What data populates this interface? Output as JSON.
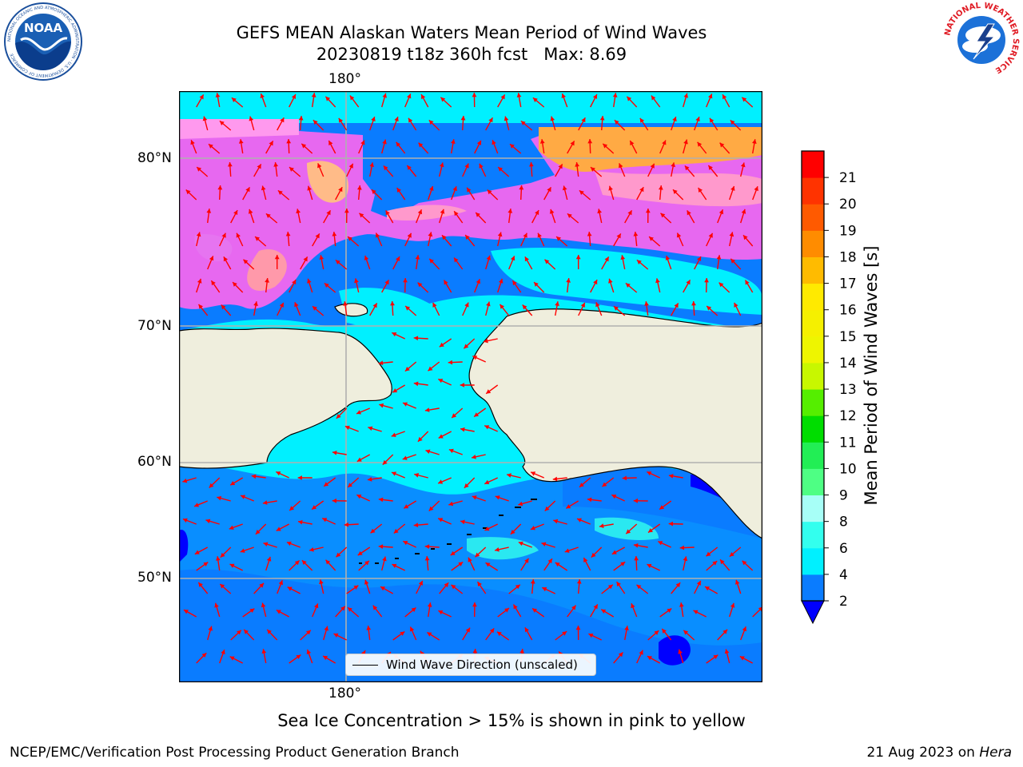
{
  "title": {
    "line1": "GEFS MEAN Alaskan Waters Mean Period of Wind Waves",
    "line2": "20230819 t18z 360h fcst   Max: 8.69"
  },
  "map": {
    "top_lon_label": "180°",
    "bottom_lon_label": "180°",
    "lat_labels": [
      "80°N",
      "70°N",
      "60°N",
      "50°N"
    ],
    "legend_label": "Wind Wave Direction (unscaled)",
    "land_color": "#efeedd",
    "coast_color": "#000000",
    "arrow_color": "#ff0000",
    "grid_color": "#b0b0b0"
  },
  "colorbar": {
    "label": "Mean Period of Wind Waves [s]",
    "ticks": [
      "2",
      "4",
      "6",
      "8",
      "9",
      "10",
      "11",
      "12",
      "13",
      "14",
      "15",
      "16",
      "17",
      "18",
      "19",
      "20",
      "21"
    ],
    "colors": [
      "#0a7cff",
      "#00f0ff",
      "#33ffee",
      "#a7fff7",
      "#4eff84",
      "#22ee55",
      "#00dd00",
      "#55ee00",
      "#c8f700",
      "#eef500",
      "#f5f000",
      "#ffea00",
      "#ffbb00",
      "#ff8c00",
      "#ff5a00",
      "#ff3300",
      "#ff0000"
    ],
    "under_color": "#0000ff"
  },
  "ice_note": "Sea Ice Concentration > 15% is shown in pink to yellow",
  "footer": {
    "left": "NCEP/EMC/Verification Post Processing Product Generation Branch",
    "date": "21 Aug 2023 on ",
    "machine": "Hera"
  },
  "logos": {
    "noaa_text": "NOAA",
    "noaa_ring": "NATIONAL OCEANIC AND ATMOSPHERIC ADMINISTRATION · U.S. DEPARTMENT OF COMMERCE",
    "nws_ring": "NATIONAL WEATHER SERVICE"
  }
}
